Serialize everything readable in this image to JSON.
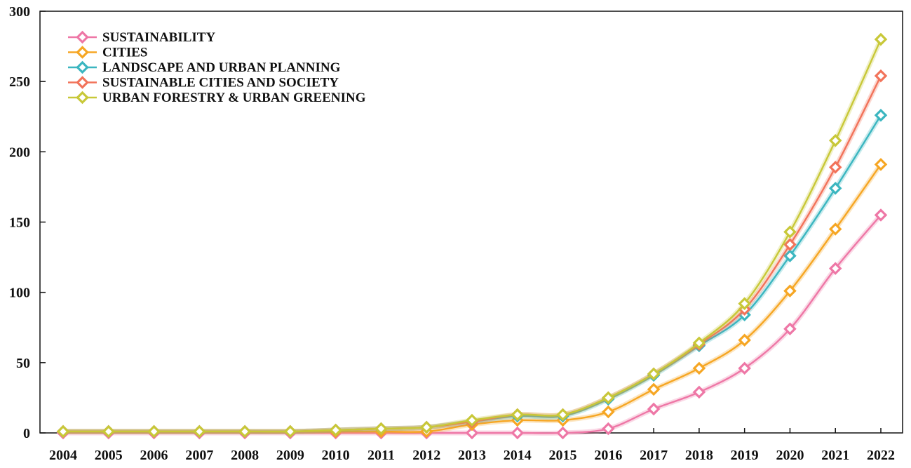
{
  "chart_data": {
    "type": "line",
    "title": "",
    "xlabel": "",
    "ylabel": "",
    "x": [
      "2004",
      "2005",
      "2006",
      "2007",
      "2008",
      "2009",
      "2010",
      "2011",
      "2012",
      "2013",
      "2014",
      "2015",
      "2016",
      "2017",
      "2018",
      "2019",
      "2020",
      "2021",
      "2022"
    ],
    "ylim": [
      0,
      300
    ],
    "yticks": [
      "0",
      "50",
      "100",
      "150",
      "200",
      "250",
      "300"
    ],
    "grid": false,
    "legend": "top-left",
    "marker": "hollow-diamond",
    "series": [
      {
        "name": "SUSTAINABILITY",
        "color": "#EE77A6",
        "values": [
          0,
          0,
          0,
          0,
          0,
          0,
          0,
          0,
          0,
          0,
          0,
          0,
          3,
          17,
          29,
          46,
          74,
          117,
          155
        ]
      },
      {
        "name": "CITIES",
        "color": "#F6A623",
        "values": [
          1,
          1,
          1,
          1,
          1,
          1,
          1,
          1,
          1,
          6,
          9,
          9,
          15,
          31,
          46,
          66,
          101,
          145,
          191
        ]
      },
      {
        "name": "LANDSCAPE AND URBAN PLANNING",
        "color": "#3BB6C0",
        "values": [
          1,
          1,
          1,
          1,
          1,
          1,
          2,
          3,
          4,
          8,
          12,
          12,
          24,
          41,
          62,
          84,
          126,
          174,
          226
        ]
      },
      {
        "name": "SUSTAINABLE CITIES AND SOCIETY",
        "color": "#F2735A",
        "values": [
          1,
          1,
          1,
          1,
          1,
          1,
          2,
          3,
          4,
          8,
          13,
          13,
          25,
          42,
          63,
          88,
          134,
          189,
          254
        ]
      },
      {
        "name": "URBAN FORESTRY & URBAN GREENING",
        "color": "#C8C838",
        "values": [
          1,
          1,
          1,
          1,
          1,
          1,
          2,
          3,
          4,
          9,
          13,
          13,
          25,
          42,
          64,
          92,
          143,
          208,
          280
        ]
      }
    ]
  }
}
